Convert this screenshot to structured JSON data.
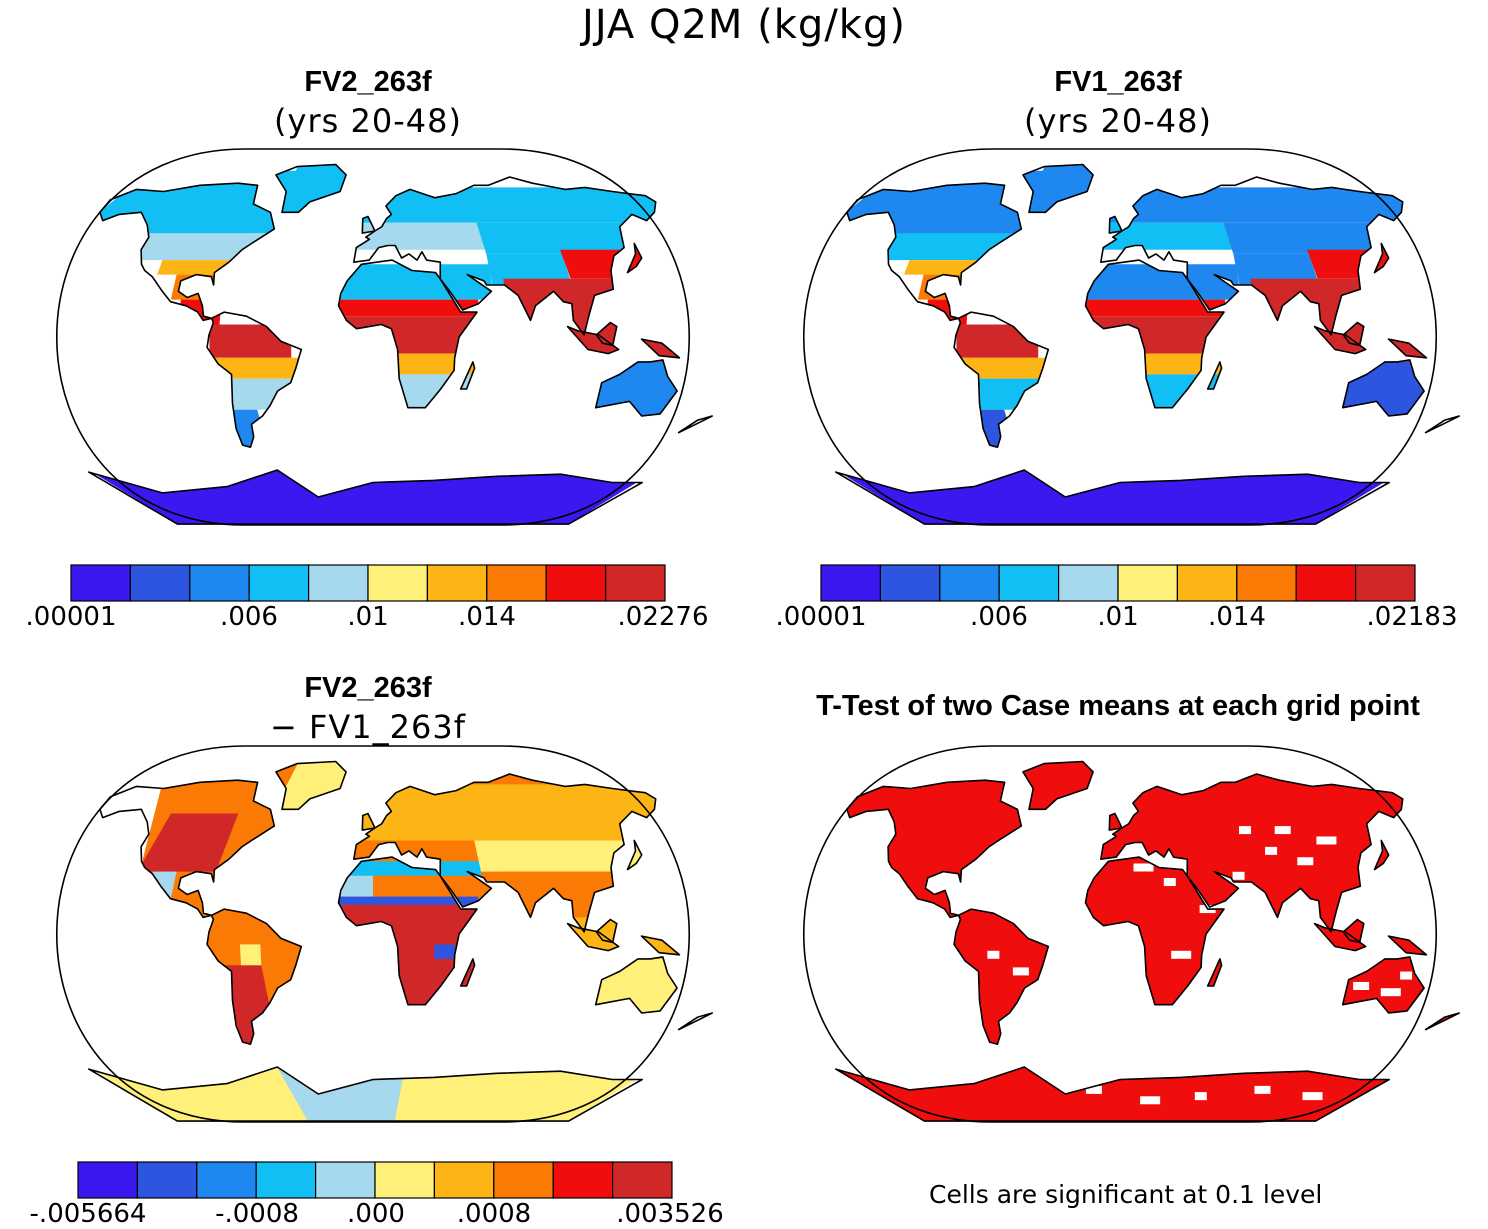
{
  "figure_title": "JJA Q2M (kg/kg)",
  "colors": {
    "seq": [
      "#3a18f0",
      "#2e55e0",
      "#1e88f0",
      "#12bff5",
      "#a6d8ee",
      "#fff07a",
      "#fdb515",
      "#fb7a05",
      "#f00d0d",
      "#d02828"
    ],
    "ocean": "#ffffff",
    "sig": "#f00d0d",
    "outline": "#000000"
  },
  "panels": [
    {
      "id": "fv2",
      "title": "FV2_263f",
      "subtitle": "(yrs 20-48)",
      "colorbar_ticks": [
        ".00001",
        ".006",
        ".01",
        ".014",
        ".02276"
      ]
    },
    {
      "id": "fv1",
      "title": "FV1_263f",
      "subtitle": "(yrs 20-48)",
      "colorbar_ticks": [
        ".00001",
        ".006",
        ".01",
        ".014",
        ".02183"
      ]
    },
    {
      "id": "diff",
      "title": "FV2_263f",
      "subtitle": "− FV1_263f",
      "colorbar_ticks": [
        "-.005664",
        "-.0008",
        ".000",
        ".0008",
        ".003526"
      ]
    },
    {
      "id": "ttest",
      "title": "T-Test of two Case means at each grid point",
      "note": "Cells are significant at 0.1 level"
    }
  ]
}
